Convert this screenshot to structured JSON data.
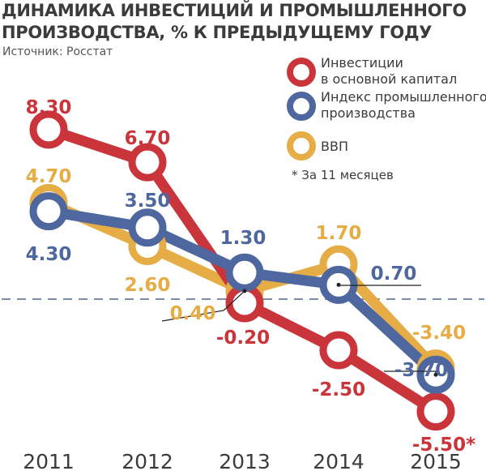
{
  "title": "ДИНАМИКА ИНВЕСТИЦИЙ И ПРОМЫШЛЕННОГО ПРОИЗВОДСТВА, % К ПРЕДЫДУЩЕМУ ГОДУ",
  "source": "Источник: Росстат",
  "footnote": "* За 11 месяцев",
  "colors": {
    "investments": "#c9353a",
    "industry": "#4e679f",
    "gdp": "#e6ac45",
    "zero_line": "#7d8ca3",
    "text": "#3b3b3b"
  },
  "chart_data": {
    "type": "line",
    "categories": [
      "2011",
      "2012",
      "2013",
      "2014",
      "2015"
    ],
    "series": [
      {
        "name": "ВВП",
        "key": "gdp",
        "values": [
          4.7,
          2.6,
          0.4,
          1.7,
          -3.4
        ],
        "labels": [
          "4.70",
          "2.60",
          "0.40",
          "1.70",
          "-3.40"
        ]
      },
      {
        "name": "Инвестиции\nв основной капитал",
        "key": "investments",
        "values": [
          8.3,
          6.7,
          -0.2,
          -2.5,
          -5.5
        ],
        "labels": [
          "8.30",
          "6.70",
          "-0.20",
          "-2.50",
          "-5.50*"
        ]
      },
      {
        "name": "Индекс промышленного\nпроизводства",
        "key": "industry",
        "values": [
          4.3,
          3.5,
          1.3,
          0.7,
          -3.7
        ],
        "labels": [
          "4.30",
          "3.50",
          "1.30",
          "0.70",
          "-3.70"
        ]
      }
    ],
    "legend": [
      {
        "key": "investments",
        "label": "Инвестиции\nв основной капитал"
      },
      {
        "key": "industry",
        "label": "Индекс промышленного\nпроизводства"
      },
      {
        "key": "gdp",
        "label": "ВВП"
      }
    ],
    "zero_line": true,
    "ylim": [
      -5.5,
      8.3
    ]
  }
}
